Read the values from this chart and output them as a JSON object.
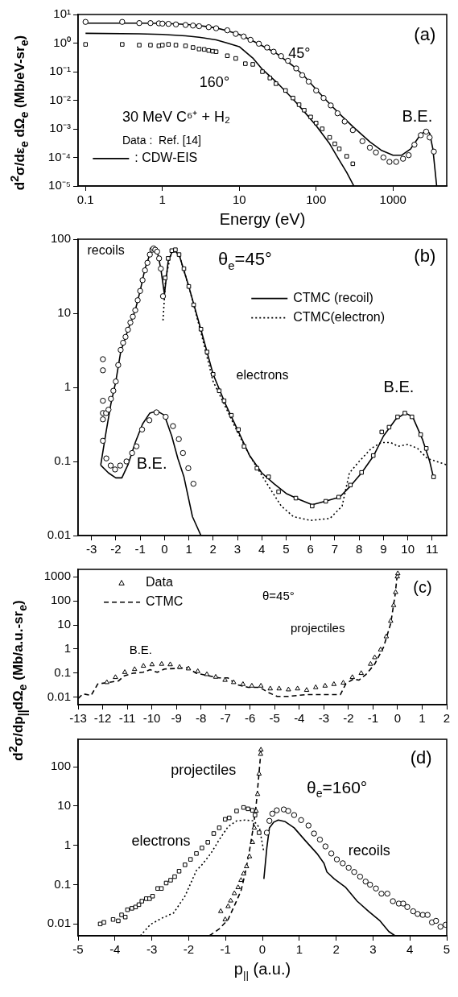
{
  "chart_data": [
    {
      "type": "line",
      "xlabel": "Energy (eV)",
      "ylabel": "d$^{2}$σ/dε$_{e}$ dΩ$_{e}$ (Mb/eV-sr$_{e}$)",
      "log": "xy",
      "legend": "bottom left",
      "xlim": [
        0.08,
        5000
      ],
      "xticks": [
        0.1,
        1,
        10,
        100,
        1000
      ],
      "ylim": [
        1e-05,
        10
      ],
      "yticks": [
        {
          "value": 10,
          "label": "10¹"
        },
        {
          "value": 1,
          "label": "10⁰"
        },
        {
          "value": 0.1,
          "label": "10⁻¹"
        },
        {
          "value": 0.01,
          "label": "10⁻²"
        },
        {
          "value": 0.001,
          "label": "10⁻³"
        },
        {
          "value": 0.0001,
          "label": "10⁻⁴"
        },
        {
          "value": 1e-05,
          "label": "10⁻⁵"
        }
      ],
      "annotations": [
        "(a)",
        "30 MeV C⁶⁺ + H₂",
        "Data :  Ref. [14]",
        "45°",
        "160°",
        "B.E."
      ],
      "series": [
        {
          "type": "scatter",
          "marker": "circle",
          "color": "#000000",
          "x": [
            0.1,
            0.3,
            0.5,
            0.7,
            0.9,
            1,
            1.2,
            1.5,
            2,
            2.5,
            3,
            4,
            5,
            7,
            9,
            11.4,
            14,
            18,
            23,
            28,
            35,
            43,
            55,
            66,
            80,
            100,
            125,
            155,
            190,
            235,
            300,
            400,
            500,
            600,
            750,
            900,
            1100,
            1350,
            1600,
            1900,
            2300,
            2700,
            3000,
            3400
          ],
          "values": [
            5.5,
            5.5,
            5,
            5,
            4.9,
            4.8,
            4.7,
            4.5,
            4.3,
            4.1,
            3.9,
            3.6,
            3.3,
            2.8,
            2.1,
            1.7,
            1.3,
            0.95,
            0.7,
            0.5,
            0.35,
            0.24,
            0.13,
            0.075,
            0.045,
            0.022,
            0.012,
            0.0066,
            0.0035,
            0.0018,
            0.0009,
            0.00037,
            0.00022,
            0.00015,
            0.0001,
            7e-05,
            7e-05,
            9e-05,
            0.00012,
            0.00028,
            0.0006,
            0.0008,
            0.0005,
            0.00016
          ]
        },
        {
          "type": "scatter",
          "marker": "square",
          "color": "#000000",
          "x": [
            0.1,
            0.3,
            0.5,
            0.7,
            0.9,
            1,
            1.2,
            1.5,
            2,
            2.5,
            3,
            3.5,
            4,
            4.5,
            5,
            7,
            9,
            12,
            15,
            20,
            25,
            30,
            40,
            50,
            60,
            70,
            85,
            100,
            120,
            150,
            175,
            200,
            250,
            300
          ],
          "values": [
            0.9,
            0.9,
            0.85,
            0.85,
            0.8,
            0.85,
            0.9,
            0.85,
            0.8,
            0.7,
            0.62,
            0.6,
            0.55,
            0.52,
            0.5,
            0.36,
            0.29,
            0.19,
            0.18,
            0.1,
            0.06,
            0.038,
            0.022,
            0.012,
            0.007,
            0.0045,
            0.0026,
            0.0016,
            0.001,
            0.0005,
            0.0003,
            0.0002,
            0.00011,
            6e-05
          ]
        },
        {
          "name": ": CDW-EIS",
          "line_style": "solid",
          "color": "#000000",
          "x": [
            0.1,
            0.5,
            1,
            2,
            3,
            5,
            7,
            10,
            15,
            20,
            30,
            50,
            70,
            100,
            150,
            200,
            300,
            500,
            700,
            1000,
            1300,
            1700,
            2200,
            2700,
            3000,
            3300,
            3700
          ],
          "values": [
            5,
            5,
            4.9,
            4.5,
            4.1,
            3.4,
            2.7,
            2,
            1.2,
            0.8,
            0.45,
            0.16,
            0.07,
            0.024,
            0.0075,
            0.0034,
            0.0012,
            0.00035,
            0.00018,
            0.00012,
            0.00012,
            0.0002,
            0.00055,
            0.0009,
            0.0007,
            0.0002,
            1e-05
          ]
        },
        {
          "line_style": "solid",
          "color": "#000000",
          "x": [
            0.1,
            0.5,
            1,
            2,
            3,
            5,
            7,
            10,
            15,
            20,
            30,
            50,
            70,
            100,
            150,
            200,
            250,
            310
          ],
          "values": [
            2.2,
            2.1,
            2,
            1.8,
            1.6,
            1.3,
            1,
            0.75,
            0.3,
            0.12,
            0.045,
            0.011,
            0.004,
            0.0013,
            0.0003,
            8e-05,
            3e-05,
            1e-05
          ]
        }
      ]
    },
    {
      "type": "line",
      "log": "y",
      "legend": "top right",
      "xlim": [
        -3.55,
        11.6
      ],
      "xticks": [
        -3,
        -2,
        -1,
        0,
        1,
        2,
        3,
        4,
        5,
        6,
        7,
        8,
        9,
        10,
        11
      ],
      "ylim": [
        0.01,
        100
      ],
      "yticks": [
        0.01,
        0.1,
        1,
        10,
        100
      ],
      "annotations": [
        "(b)",
        "θ$_{e}$=45°",
        "recoils",
        "electrons",
        "B.E.",
        "B.E."
      ],
      "series": [
        {
          "type": "scatter",
          "marker": "circle",
          "color": "#000000",
          "x": [
            -2.53,
            -2.53,
            -2.53,
            -2.53,
            -2.53,
            -2.53,
            -2.4,
            -2.3,
            -2.2,
            -2.1,
            -2,
            -1.9,
            -1.8,
            -1.7,
            -1.6,
            -1.5,
            -1.4,
            -1.3,
            -1.2,
            -1.1,
            -1,
            -0.9,
            -0.8,
            -0.7,
            -0.6,
            -0.5,
            -0.45,
            -0.38,
            -0.3,
            -0.22,
            -0.15,
            -0.06
          ],
          "values": [
            2.4,
            1.7,
            0.66,
            0.45,
            0.37,
            0.19,
            0.45,
            0.5,
            0.7,
            0.9,
            1.2,
            2,
            3.2,
            4,
            4.8,
            6,
            7.5,
            9,
            11,
            15,
            20,
            28,
            38,
            48,
            62,
            72,
            75,
            72,
            68,
            55,
            40,
            17
          ]
        },
        {
          "type": "scatter",
          "marker": "circle",
          "color": "#000000",
          "x": [
            -2.39,
            -2.21,
            -2.03,
            -1.82,
            -1.56,
            -1.33,
            -1.15,
            -0.92,
            -0.62,
            -0.33,
            0.05,
            0.35,
            0.59,
            0.76,
            0.98,
            1.19
          ],
          "values": [
            0.11,
            0.088,
            0.078,
            0.088,
            0.1,
            0.13,
            0.16,
            0.27,
            0.36,
            0.46,
            0.4,
            0.3,
            0.2,
            0.13,
            0.081,
            0.05
          ]
        },
        {
          "type": "scatter",
          "marker": "square",
          "color": "#000000",
          "x": [
            0.03,
            0.15,
            0.3,
            0.45,
            0.6,
            0.8,
            1,
            1.2,
            1.5,
            1.75,
            2,
            2.25,
            2.45,
            2.75,
            3.04,
            3.27,
            3.8,
            4.28,
            4.69,
            5.4,
            6.07,
            6.63,
            7.16,
            7.64,
            8.1,
            8.58,
            8.93,
            9.23,
            9.58,
            9.88,
            10.17,
            10.53,
            10.76,
            11.06
          ],
          "values": [
            30,
            55,
            70,
            72,
            62,
            40,
            23,
            13,
            6.1,
            3,
            1.5,
            0.9,
            0.66,
            0.42,
            0.27,
            0.16,
            0.081,
            0.062,
            0.039,
            0.032,
            0.025,
            0.029,
            0.033,
            0.048,
            0.071,
            0.12,
            0.25,
            0.29,
            0.4,
            0.45,
            0.4,
            0.23,
            0.15,
            0.062
          ]
        },
        {
          "name": "CTMC (recoil)",
          "line_style": "solid",
          "color": "#000000",
          "x": [
            -2.62,
            -2.4,
            -2.2,
            -2,
            -1.8,
            -1.5,
            -1.2,
            -1,
            -0.8,
            -0.5,
            -0.3,
            -0.15,
            0,
            0.15,
            0.35,
            0.6,
            1,
            1.5,
            2,
            2.5,
            3,
            3.5,
            4,
            4.5,
            5,
            5.5,
            6.07,
            6.6,
            7.2,
            7.6,
            8.1,
            8.6,
            9,
            9.5,
            9.9,
            10.2,
            10.6,
            10.9,
            11.06
          ],
          "values": [
            0.089,
            0.25,
            0.6,
            1.2,
            3,
            6,
            11,
            20,
            40,
            78,
            70,
            40,
            18,
            50,
            72,
            62,
            23,
            6,
            1.5,
            0.6,
            0.27,
            0.12,
            0.07,
            0.05,
            0.037,
            0.031,
            0.026,
            0.029,
            0.033,
            0.045,
            0.07,
            0.12,
            0.22,
            0.37,
            0.45,
            0.4,
            0.2,
            0.1,
            0.06
          ]
        },
        {
          "line_style": "solid",
          "color": "#000000",
          "x": [
            -2.62,
            -2.3,
            -2,
            -1.75,
            -1.5,
            -1.2,
            -0.9,
            -0.6,
            -0.3,
            0,
            0.3,
            0.55,
            0.8,
            1.15,
            1.5
          ],
          "values": [
            0.089,
            0.07,
            0.06,
            0.06,
            0.09,
            0.18,
            0.32,
            0.45,
            0.48,
            0.42,
            0.22,
            0.11,
            0.062,
            0.018,
            0.01
          ]
        },
        {
          "name": "CTMC(electron)",
          "line_style": "dotted",
          "color": "#000000",
          "x": [
            -0.06,
            0.05,
            0.3,
            0.6,
            1,
            1.5,
            2,
            2.5,
            3,
            3.5,
            4,
            4.4,
            4.8,
            5.3,
            6,
            6.8,
            7.3,
            7.6,
            8,
            8.5,
            8.9,
            9.3,
            9.6,
            10,
            10.4,
            10.8,
            11.6
          ],
          "values": [
            8,
            30,
            70,
            62,
            23,
            5.5,
            1.2,
            0.55,
            0.25,
            0.12,
            0.065,
            0.04,
            0.025,
            0.018,
            0.016,
            0.017,
            0.025,
            0.07,
            0.1,
            0.15,
            0.18,
            0.18,
            0.16,
            0.17,
            0.15,
            0.11,
            0.09
          ]
        }
      ]
    },
    {
      "type": "line",
      "ylabel": "d$^{2}$σ/dp$_{||}$dΩ$_{e}$ (Mb/a.u.-sr$_{e}$)",
      "log": "y",
      "legend": "top left",
      "xlim": [
        -13,
        2
      ],
      "xticks": [
        -13,
        -12,
        -11,
        -10,
        -9,
        -8,
        -7,
        -6,
        -5,
        -4,
        -3,
        -2,
        -1,
        0,
        1,
        2
      ],
      "ylim": [
        0.005,
        2000
      ],
      "yticks": [
        0.01,
        0.1,
        1,
        10,
        100,
        1000
      ],
      "annotations": [
        "(c)",
        "θ=45°",
        "projectiles",
        "B.E."
      ],
      "series": [
        {
          "type": "scatter",
          "name": "Data",
          "marker": "triangle",
          "color": "#000000",
          "x": [
            -11.83,
            -11.48,
            -11.1,
            -10.7,
            -10.34,
            -9.99,
            -9.6,
            -9.25,
            -8.87,
            -8.51,
            -8.13,
            -7.76,
            -7.4,
            -7.02,
            -6.67,
            -6.29,
            -5.93,
            -5.56,
            -5.18,
            -4.82,
            -4.44,
            -4.07,
            -3.7,
            -3.33,
            -2.95,
            -2.59,
            -2.21,
            -1.84,
            -1.48,
            -1.1,
            -0.93,
            -0.69,
            -0.46,
            -0.28,
            -0.16,
            -0.08,
            -0.01,
            0.01
          ],
          "values": [
            0.042,
            0.068,
            0.11,
            0.146,
            0.2,
            0.23,
            0.24,
            0.23,
            0.18,
            0.155,
            0.12,
            0.09,
            0.07,
            0.052,
            0.042,
            0.035,
            0.03,
            0.03,
            0.023,
            0.023,
            0.021,
            0.023,
            0.02,
            0.026,
            0.03,
            0.035,
            0.04,
            0.068,
            0.1,
            0.24,
            0.45,
            0.95,
            3.3,
            14.6,
            65,
            225,
            1000,
            1350
          ]
        },
        {
          "name": "CTMC",
          "line_style": "dashed",
          "color": "#000000",
          "x": [
            -13,
            -12.8,
            -12.47,
            -12.2,
            -11.73,
            -11.36,
            -11.12,
            -10.77,
            -10.36,
            -10.07,
            -9.78,
            -9.48,
            -8.9,
            -8.55,
            -8.19,
            -7.72,
            -7.26,
            -6.9,
            -6.55,
            -6.08,
            -5.61,
            -5.26,
            -4.9,
            -4.44,
            -3.74,
            -3.03,
            -2.33,
            -2.1,
            -1.8,
            -1.57,
            -1.28,
            -0.93,
            -0.57,
            -0.28,
            -0.1,
            -0.01
          ],
          "values": [
            0.009,
            0.014,
            0.012,
            0.036,
            0.042,
            0.048,
            0.078,
            0.1,
            0.11,
            0.14,
            0.11,
            0.15,
            0.16,
            0.17,
            0.1,
            0.08,
            0.064,
            0.064,
            0.034,
            0.026,
            0.026,
            0.016,
            0.011,
            0.011,
            0.013,
            0.013,
            0.013,
            0.037,
            0.057,
            0.052,
            0.09,
            0.24,
            1.2,
            11.4,
            175,
            1280
          ]
        }
      ]
    },
    {
      "type": "line",
      "xlabel": "p$_{||}$ (a.u.)",
      "log": "y",
      "xlim": [
        -5,
        5
      ],
      "xticks": [
        -5,
        -4,
        -3,
        -2,
        -1,
        0,
        1,
        2,
        3,
        4,
        5
      ],
      "ylim": [
        0.005,
        500
      ],
      "yticks": [
        0.01,
        0.1,
        1,
        10,
        100
      ],
      "annotations": [
        "(d)",
        "θ$_{e}$=160°",
        "projectiles",
        "electrons",
        "recoils"
      ],
      "series": [
        {
          "type": "scatter",
          "marker": "square",
          "color": "#000000",
          "x": [
            -4.4,
            -4.3,
            -4.05,
            -3.91,
            -3.82,
            -3.72,
            -3.66,
            -3.54,
            -3.44,
            -3.35,
            -3.27,
            -3.15,
            -3.06,
            -2.98,
            -2.84,
            -2.74,
            -2.61,
            -2.49,
            -2.38,
            -2.26,
            -2.1,
            -1.95,
            -1.79,
            -1.64,
            -1.48,
            -1.32,
            -1.17,
            -1.01,
            -0.9,
            -0.7,
            -0.51,
            -0.39,
            -0.27,
            -0.2,
            -0.09
          ],
          "values": [
            0.01,
            0.011,
            0.013,
            0.012,
            0.017,
            0.015,
            0.023,
            0.025,
            0.027,
            0.031,
            0.038,
            0.044,
            0.044,
            0.051,
            0.08,
            0.08,
            0.11,
            0.13,
            0.16,
            0.22,
            0.32,
            0.44,
            0.62,
            0.86,
            1.2,
            2,
            2.8,
            4.6,
            5,
            7.5,
            9.2,
            8.5,
            7.8,
            5.9,
            2.1
          ]
        },
        {
          "type": "scatter",
          "marker": "circle",
          "color": "#000000",
          "x": [
            0.12,
            0.19,
            0.27,
            0.39,
            0.58,
            0.7,
            0.86,
            1.05,
            1.25,
            1.4,
            1.56,
            1.71,
            1.87,
            2.02,
            2.18,
            2.34,
            2.49,
            2.65,
            2.8,
            2.92,
            3.08,
            3.23,
            3.39,
            3.54,
            3.7,
            3.82,
            3.93,
            4.09,
            4.21,
            4.35,
            4.48,
            4.6,
            4.71,
            4.83,
            4.97
          ],
          "values": [
            2.1,
            4.2,
            6.4,
            7.8,
            8.2,
            7.5,
            5.9,
            4.4,
            3.2,
            2,
            1.4,
            0.94,
            0.62,
            0.44,
            0.35,
            0.27,
            0.21,
            0.16,
            0.12,
            0.1,
            0.08,
            0.059,
            0.059,
            0.038,
            0.033,
            0.033,
            0.027,
            0.021,
            0.018,
            0.017,
            0.017,
            0.011,
            0.012,
            0.0085,
            0.0095
          ]
        },
        {
          "type": "scatter",
          "marker": "triangle",
          "color": "#000000",
          "x": [
            -1.13,
            -1.01,
            -0.93,
            -0.86,
            -0.76,
            -0.66,
            -0.58,
            -0.51,
            -0.43,
            -0.35,
            -0.27,
            -0.22,
            -0.17,
            -0.13,
            -0.09,
            -0.05,
            -0.04
          ],
          "values": [
            0.021,
            0.013,
            0.028,
            0.039,
            0.06,
            0.085,
            0.13,
            0.19,
            0.29,
            0.52,
            1.2,
            2.8,
            7.5,
            20,
            66,
            210,
            270
          ]
        },
        {
          "line_style": "dotted",
          "color": "#000000",
          "x": [
            -3.31,
            -3.04,
            -2.73,
            -2.41,
            -2.1,
            -1.79,
            -1.64,
            -1.4,
            -1.17,
            -0.93,
            -0.7,
            -0.47,
            -0.23,
            -0.08,
            0.04
          ],
          "values": [
            0.005,
            0.0097,
            0.014,
            0.019,
            0.051,
            0.23,
            0.32,
            0.62,
            1.4,
            3,
            4.2,
            4.4,
            4.2,
            2.8,
            0.67
          ]
        },
        {
          "line_style": "dashed",
          "color": "#000000",
          "x": [
            -1.44,
            -1.17,
            -0.93,
            -0.74,
            -0.58,
            -0.47,
            -0.35,
            -0.25,
            -0.17,
            -0.1,
            -0.04
          ],
          "values": [
            0.005,
            0.0075,
            0.013,
            0.032,
            0.07,
            0.19,
            0.73,
            2.8,
            10.5,
            56,
            250
          ]
        },
        {
          "line_style": "solid",
          "color": "#000000",
          "x": [
            0.04,
            0.12,
            0.19,
            0.31,
            0.43,
            0.62,
            0.86,
            1.17,
            1.48,
            1.67,
            1.75,
            1.95,
            2.26,
            2.57,
            2.88,
            3.19,
            3.43,
            3.6
          ],
          "values": [
            0.14,
            0.86,
            2.8,
            3.9,
            4.4,
            4,
            2.8,
            1.3,
            0.62,
            0.35,
            0.21,
            0.14,
            0.085,
            0.038,
            0.021,
            0.012,
            0.0064,
            0.005
          ]
        }
      ]
    }
  ]
}
